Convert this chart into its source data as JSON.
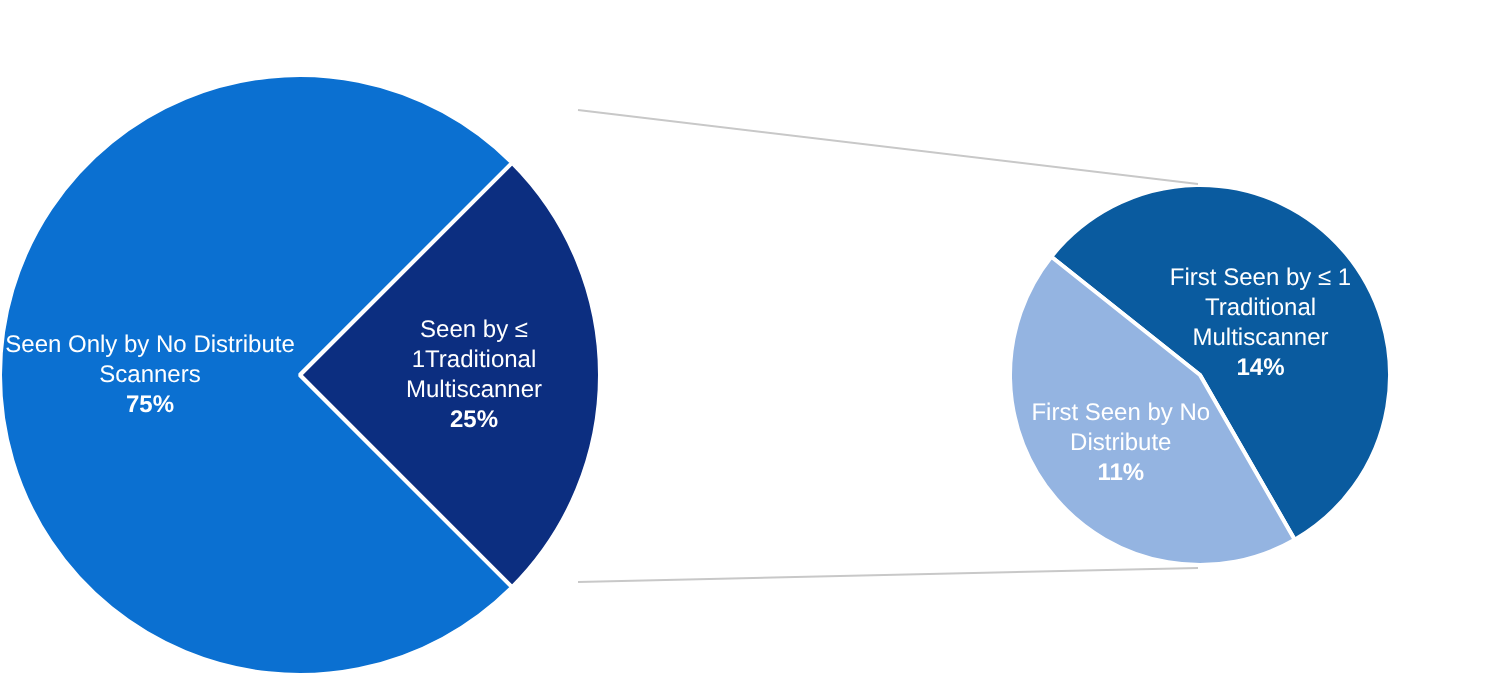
{
  "chart_data": [
    {
      "type": "pie",
      "categories": [
        "Seen Only by No Distribute Scanners",
        "Seen by ≤ 1Traditional Multiscanner"
      ],
      "values": [
        75,
        25
      ],
      "colors": [
        "#0b70d1",
        "#0c2e80"
      ],
      "value_labels": [
        "75%",
        "25%"
      ]
    },
    {
      "type": "pie",
      "categories": [
        "First Seen by ≤ 1 Traditional Multiscanner",
        "First Seen by No Distribute"
      ],
      "values": [
        14,
        11
      ],
      "colors": [
        "#0a5b9f",
        "#94b4e1"
      ],
      "value_labels": [
        "14%",
        "11%"
      ]
    }
  ]
}
